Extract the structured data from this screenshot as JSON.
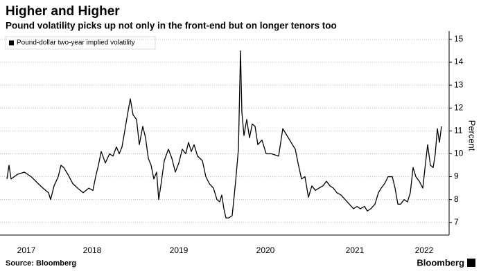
{
  "chart_data": {
    "type": "line",
    "title": "Higher and Higher",
    "subtitle": "Pound volatility picks up not only in the front-end but on longer tenors too",
    "y_label": "Percent",
    "source": "Source: Bloomberg",
    "brand": "Bloomberg",
    "legend": "upper left",
    "grid": true,
    "x": [
      2017.52,
      2017.544,
      2017.568,
      2017.64,
      2017.72,
      2017.8,
      2017.88,
      2017.936,
      2018,
      2018.024,
      2018.064,
      2018.112,
      2018.144,
      2018.176,
      2018.224,
      2018.28,
      2018.336,
      2018.4,
      2018.464,
      2018.512,
      2018.544,
      2018.576,
      2018.608,
      2018.656,
      2018.704,
      2018.744,
      2018.784,
      2018.816,
      2018.848,
      2018.88,
      2018.92,
      2018.944,
      2018.976,
      2019.016,
      2019.048,
      2019.088,
      2019.12,
      2019.152,
      2019.184,
      2019.216,
      2019.248,
      2019.272,
      2019.296,
      2019.336,
      2019.384,
      2019.424,
      2019.464,
      2019.504,
      2019.544,
      2019.584,
      2019.616,
      2019.648,
      2019.68,
      2019.72,
      2019.776,
      2019.816,
      2019.856,
      2019.904,
      2019.944,
      2019.976,
      2020,
      2020.024,
      2020.048,
      2020.08,
      2020.12,
      2020.16,
      2020.192,
      2020.216,
      2020.232,
      2020.256,
      2020.288,
      2020.32,
      2020.352,
      2020.384,
      2020.416,
      2020.464,
      2020.512,
      2020.576,
      2020.656,
      2020.704,
      2020.752,
      2020.8,
      2020.848,
      2020.88,
      2020.92,
      2020.96,
      2021,
      2021.04,
      2021.08,
      2021.12,
      2021.168,
      2021.208,
      2021.248,
      2021.288,
      2021.328,
      2021.376,
      2021.424,
      2021.472,
      2021.52,
      2021.56,
      2021.6,
      2021.648,
      2021.68,
      2021.72,
      2021.768,
      2021.808,
      2021.84,
      2021.88,
      2021.92,
      2021.968,
      2022,
      2022.032,
      2022.064,
      2022.104,
      2022.144,
      2022.176,
      2022.208,
      2022.24,
      2022.28,
      2022.32,
      2022.352,
      2022.376,
      2022.408,
      2022.44,
      2022.464,
      2022.488,
      2022.512,
      2022.536
    ],
    "series": [
      {
        "name": "Pound-dollar two-year implied volatility",
        "color": "#000000",
        "values": [
          8.9,
          9.5,
          8.9,
          9.1,
          9.2,
          9.0,
          8.7,
          8.5,
          8.3,
          8.0,
          8.6,
          9.0,
          9.5,
          9.4,
          9.1,
          8.7,
          8.5,
          8.3,
          8.5,
          8.4,
          9.0,
          9.5,
          10.1,
          9.6,
          10.0,
          9.9,
          10.3,
          10.0,
          10.3,
          11.0,
          11.9,
          12.4,
          11.7,
          11.5,
          10.4,
          11.2,
          10.7,
          9.8,
          9.5,
          8.9,
          9.2,
          8.0,
          8.6,
          9.7,
          10.2,
          9.8,
          9.2,
          9.6,
          10.2,
          10.0,
          10.5,
          10.1,
          10.4,
          9.9,
          9.7,
          9.0,
          8.7,
          8.5,
          8.0,
          7.9,
          8.2,
          7.6,
          7.2,
          7.2,
          7.3,
          8.8,
          10.2,
          14.5,
          11.8,
          10.8,
          11.5,
          10.7,
          11.3,
          11.2,
          10.4,
          10.6,
          10.0,
          10.0,
          9.9,
          11.1,
          10.8,
          10.5,
          10.2,
          9.6,
          8.9,
          9.0,
          8.1,
          8.6,
          8.4,
          8.5,
          8.6,
          8.8,
          8.6,
          8.5,
          8.3,
          8.2,
          8.0,
          7.8,
          7.6,
          7.7,
          7.6,
          7.7,
          7.5,
          7.6,
          7.8,
          8.3,
          8.5,
          8.7,
          9.0,
          9.0,
          8.5,
          7.8,
          7.8,
          8.0,
          7.9,
          8.3,
          9.4,
          9.0,
          8.8,
          8.5,
          9.6,
          10.4,
          9.5,
          9.4,
          10.0,
          11.1,
          10.5,
          11.2
        ]
      }
    ],
    "xlim": [
      2017.44,
      2022.624
    ],
    "xticks": [
      {
        "value": 2017.744,
        "label": "2017"
      },
      {
        "value": 2018.504,
        "label": "2018"
      },
      {
        "value": 2019.504,
        "label": "2019"
      },
      {
        "value": 2020.504,
        "label": "2020"
      },
      {
        "value": 2021.536,
        "label": "2021"
      },
      {
        "value": 2022.336,
        "label": "2022"
      }
    ],
    "ylim": [
      6.45,
      15.36
    ],
    "yticks": [
      7,
      8,
      9,
      10,
      11,
      12,
      13,
      14,
      15
    ]
  }
}
